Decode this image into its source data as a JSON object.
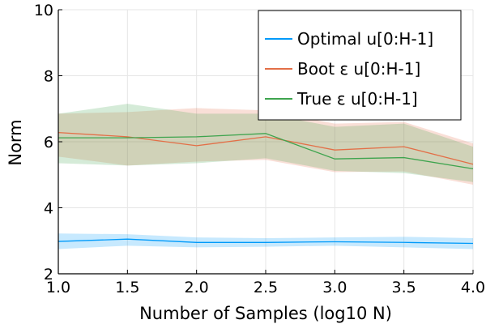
{
  "chart_data": {
    "type": "line",
    "title": "",
    "xlabel": "Number of Samples (log10 N)",
    "ylabel": "Norm",
    "xlim": [
      1.0,
      4.0
    ],
    "ylim": [
      2,
      10
    ],
    "x_ticks": [
      "1.0",
      "1.5",
      "2.0",
      "2.5",
      "3.0",
      "3.5",
      "4.0"
    ],
    "y_ticks": [
      "2",
      "4",
      "6",
      "8",
      "10"
    ],
    "grid": true,
    "legend_position": "top-right",
    "x": [
      1.0,
      1.5,
      2.0,
      2.5,
      3.0,
      3.5,
      4.0
    ],
    "series": [
      {
        "name": "Optimal u[0:H-1]",
        "color": "#009AFA",
        "values": [
          2.98,
          3.05,
          2.95,
          2.95,
          2.97,
          2.95,
          2.92
        ],
        "lower": [
          2.75,
          2.85,
          2.8,
          2.82,
          2.85,
          2.8,
          2.75
        ],
        "upper": [
          3.22,
          3.2,
          3.1,
          3.08,
          3.1,
          3.12,
          3.08
        ]
      },
      {
        "name": "Boot ε u[0:H-1]",
        "color": "#E36F47",
        "values": [
          6.28,
          6.15,
          5.88,
          6.15,
          5.75,
          5.85,
          5.32
        ],
        "lower": [
          5.55,
          5.28,
          5.4,
          5.45,
          5.08,
          5.1,
          4.7
        ],
        "upper": [
          6.85,
          6.9,
          7.02,
          6.95,
          6.55,
          6.6,
          5.95
        ]
      },
      {
        "name": "True ε u[0:H-1]",
        "color": "#3EA44E",
        "values": [
          6.12,
          6.12,
          6.15,
          6.25,
          5.48,
          5.52,
          5.18
        ],
        "lower": [
          5.35,
          5.28,
          5.35,
          5.5,
          5.12,
          5.05,
          4.78
        ],
        "upper": [
          6.85,
          7.15,
          6.85,
          6.85,
          6.45,
          6.55,
          5.85
        ]
      }
    ]
  }
}
